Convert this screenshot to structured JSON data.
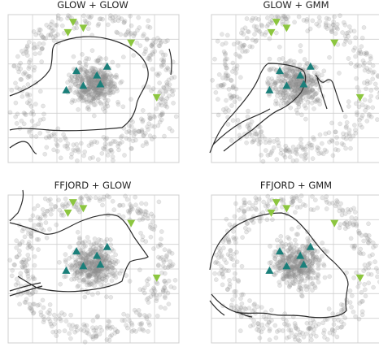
{
  "colors": {
    "grid": "#cfcfcf",
    "samples": "#8c8c8c",
    "boundary": "#2b2b2b",
    "triangle_center": "#1a7f7a",
    "triangle_ring": "#8cc63f"
  },
  "chart_data": [
    {
      "type": "scatter",
      "title": "GLOW + GLOW",
      "series": [
        {
          "marker": "circle",
          "color": "#8c8c8c"
        },
        {
          "marker": "triangle-up",
          "color": "#1a7f7a"
        },
        {
          "marker": "triangle-down",
          "color": "#8cc63f"
        }
      ],
      "grid": true
    },
    {
      "type": "scatter",
      "title": "GLOW + GMM",
      "series": [
        {
          "marker": "circle",
          "color": "#8c8c8c"
        },
        {
          "marker": "triangle-up",
          "color": "#1a7f7a"
        },
        {
          "marker": "triangle-down",
          "color": "#8cc63f"
        }
      ],
      "grid": true
    },
    {
      "type": "scatter",
      "title": "FFJORD + GLOW",
      "series": [
        {
          "marker": "circle",
          "color": "#8c8c8c"
        },
        {
          "marker": "triangle-up",
          "color": "#1a7f7a"
        },
        {
          "marker": "triangle-down",
          "color": "#8cc63f"
        }
      ],
      "grid": true
    },
    {
      "type": "scatter",
      "title": "FFJORD + GMM",
      "series": [
        {
          "marker": "circle",
          "color": "#8c8c8c"
        },
        {
          "marker": "triangle-up",
          "color": "#1a7f7a"
        },
        {
          "marker": "triangle-down",
          "color": "#8cc63f"
        }
      ],
      "grid": true
    }
  ]
}
